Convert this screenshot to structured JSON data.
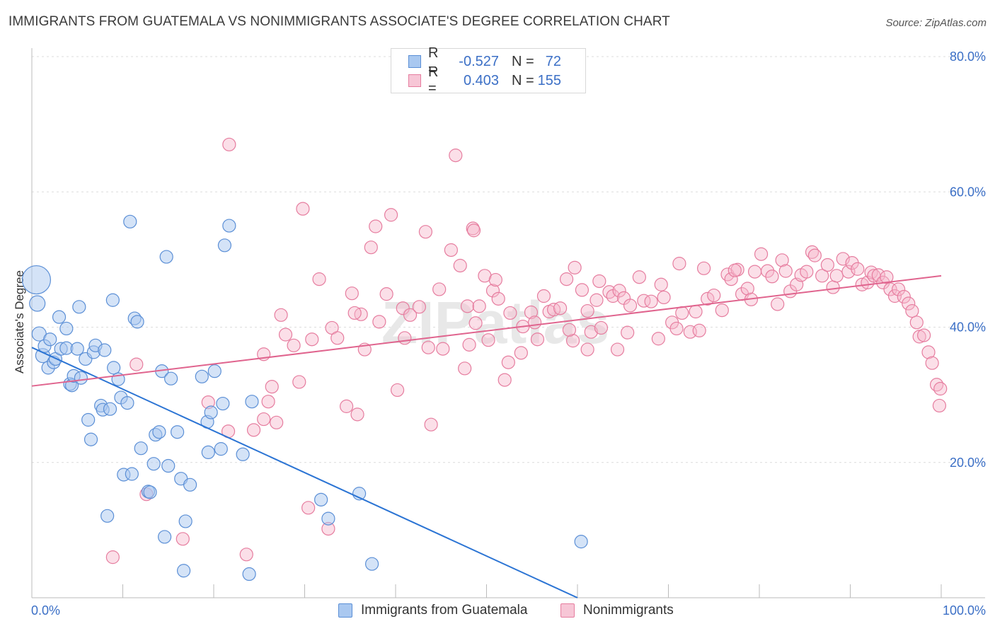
{
  "title": "IMMIGRANTS FROM GUATEMALA VS NONIMMIGRANTS ASSOCIATE'S DEGREE CORRELATION CHART",
  "source": "Source: ZipAtlas.com",
  "legend": {
    "r_label": "R =",
    "n_label": "N =",
    "rows": [
      {
        "r": "-0.527",
        "n": "72"
      },
      {
        "r": "0.403",
        "n": "155"
      }
    ]
  },
  "bottom_legend": [
    "Immigrants from Guatemala",
    "Nonimmigrants"
  ],
  "watermark": "ZIPatlas",
  "colors": {
    "blue_fill": "#a9c8f0",
    "blue_stroke": "#5b8fd6",
    "blue_line": "#2b74d4",
    "pink_fill": "#f7b8cc",
    "pink_stroke": "#e67d9f",
    "pink_line": "#e0648e",
    "grid": "#dcdcdc",
    "tick_text": "#3b6fc6"
  },
  "chart_data": {
    "type": "scatter",
    "ylabel": "Associate's Degree",
    "xlim": [
      0,
      100
    ],
    "ylim": [
      0,
      80
    ],
    "x_tick_labels": [
      "0.0%",
      "100.0%"
    ],
    "y_ticks": [
      20,
      40,
      60,
      80
    ],
    "y_tick_labels": [
      "20.0%",
      "40.0%",
      "60.0%",
      "80.0%"
    ],
    "grid": "horizontal dashed",
    "series": [
      {
        "name": "Immigrants from Guatemala",
        "color": "blue",
        "trend": {
          "x0": 0,
          "y0": 37.0,
          "x1": 60,
          "y1": 0
        },
        "points": [
          [
            0.5,
            47,
            20
          ],
          [
            0.6,
            43.5,
            11
          ],
          [
            0.8,
            39,
            10
          ],
          [
            1.2,
            35.8,
            10
          ],
          [
            1.4,
            37.2,
            9
          ],
          [
            1.8,
            34,
            9
          ],
          [
            2.0,
            38.2,
            9
          ],
          [
            2.4,
            34.8,
            9
          ],
          [
            2.6,
            35.3,
            9
          ],
          [
            3.2,
            36.8,
            9
          ],
          [
            3.0,
            41.5,
            9
          ],
          [
            3.8,
            36.9,
            9
          ],
          [
            3.8,
            39.8,
            9
          ],
          [
            4.2,
            31.6,
            9
          ],
          [
            4.4,
            31.4,
            9
          ],
          [
            4.6,
            32.8,
            9
          ],
          [
            5.0,
            36.8,
            9
          ],
          [
            5.2,
            43,
            9
          ],
          [
            5.4,
            32.5,
            9
          ],
          [
            5.9,
            35.3,
            9
          ],
          [
            6.2,
            26.3,
            9
          ],
          [
            6.5,
            23.4,
            9
          ],
          [
            6.8,
            36.3,
            9
          ],
          [
            7.0,
            37.3,
            9
          ],
          [
            7.6,
            28.4,
            9
          ],
          [
            7.8,
            27.8,
            9
          ],
          [
            8.0,
            36.6,
            9
          ],
          [
            8.3,
            12.1,
            9
          ],
          [
            8.6,
            27.9,
            9
          ],
          [
            8.9,
            44,
            9
          ],
          [
            9.0,
            34,
            9
          ],
          [
            9.5,
            32.3,
            9
          ],
          [
            9.8,
            29.6,
            9
          ],
          [
            10.1,
            18.2,
            9
          ],
          [
            10.5,
            28.8,
            9
          ],
          [
            10.8,
            55.6,
            9
          ],
          [
            11.0,
            18.3,
            9
          ],
          [
            11.3,
            41.3,
            9
          ],
          [
            11.6,
            40.8,
            9
          ],
          [
            12.0,
            22.1,
            9
          ],
          [
            12.8,
            15.7,
            9
          ],
          [
            13.0,
            15.6,
            9
          ],
          [
            13.4,
            19.8,
            9
          ],
          [
            13.6,
            24.1,
            9
          ],
          [
            14.0,
            24.5,
            9
          ],
          [
            14.3,
            33.5,
            9
          ],
          [
            14.6,
            9,
            9
          ],
          [
            14.8,
            50.4,
            9
          ],
          [
            15.0,
            19.5,
            9
          ],
          [
            15.3,
            32.4,
            9
          ],
          [
            16.0,
            24.5,
            9
          ],
          [
            16.4,
            17.6,
            9
          ],
          [
            16.7,
            4,
            9
          ],
          [
            16.9,
            11.3,
            9
          ],
          [
            17.4,
            16.7,
            9
          ],
          [
            18.7,
            32.7,
            9
          ],
          [
            19.3,
            26,
            9
          ],
          [
            19.4,
            21.5,
            9
          ],
          [
            19.7,
            27.4,
            9
          ],
          [
            20.1,
            33.5,
            9
          ],
          [
            20.8,
            22,
            9
          ],
          [
            21.0,
            28.7,
            9
          ],
          [
            21.2,
            52.1,
            9
          ],
          [
            21.7,
            55,
            9
          ],
          [
            23.2,
            21.2,
            9
          ],
          [
            23.9,
            3.5,
            9
          ],
          [
            31.8,
            14.5,
            9
          ],
          [
            32.6,
            11.7,
            9
          ],
          [
            36.0,
            15.4,
            9
          ],
          [
            37.4,
            5,
            9
          ],
          [
            60.4,
            8.3,
            9
          ],
          [
            24.2,
            29,
            9
          ]
        ]
      },
      {
        "name": "Nonimmigrants",
        "color": "pink",
        "trend": {
          "x0": 0,
          "y0": 31.3,
          "x1": 100,
          "y1": 47.6
        },
        "points": [
          [
            8.9,
            6,
            9
          ],
          [
            11.5,
            34.5,
            9
          ],
          [
            12.6,
            15.3,
            9
          ],
          [
            16.6,
            8.7,
            9
          ],
          [
            19.4,
            28.9,
            9
          ],
          [
            21.6,
            24.6,
            9
          ],
          [
            21.7,
            67,
            9
          ],
          [
            23.6,
            6.4,
            9
          ],
          [
            24.4,
            24.8,
            9
          ],
          [
            25.5,
            36,
            9
          ],
          [
            25.5,
            26.4,
            9
          ],
          [
            26,
            29,
            9
          ],
          [
            26.4,
            31.2,
            9
          ],
          [
            26.9,
            25.9,
            9
          ],
          [
            27.4,
            41.8,
            9
          ],
          [
            27.9,
            38.9,
            9
          ],
          [
            28.8,
            37.3,
            9
          ],
          [
            29.4,
            31.9,
            9
          ],
          [
            29.8,
            57.5,
            9
          ],
          [
            30.4,
            13.3,
            9
          ],
          [
            30.8,
            38.2,
            9
          ],
          [
            31.6,
            47.1,
            9
          ],
          [
            32.6,
            10.2,
            9
          ],
          [
            33,
            39.9,
            9
          ],
          [
            33.6,
            38.4,
            9
          ],
          [
            34.6,
            28.3,
            9
          ],
          [
            35.2,
            45,
            9
          ],
          [
            35.8,
            27.1,
            9
          ],
          [
            36.2,
            41.9,
            9
          ],
          [
            36.6,
            36.7,
            9
          ],
          [
            37.3,
            51.8,
            9
          ],
          [
            37.8,
            54.9,
            9
          ],
          [
            38.2,
            40.8,
            9
          ],
          [
            39,
            44.9,
            9
          ],
          [
            39.5,
            56.6,
            9
          ],
          [
            40.2,
            30.7,
            9
          ],
          [
            40.8,
            42.8,
            9
          ],
          [
            41.0,
            38.4,
            9
          ],
          [
            41.6,
            41.8,
            9
          ],
          [
            42.6,
            43,
            9
          ],
          [
            43.3,
            54.1,
            9
          ],
          [
            43.6,
            37,
            9
          ],
          [
            43.9,
            25.6,
            9
          ],
          [
            44.8,
            45.6,
            9
          ],
          [
            45.2,
            36.8,
            9
          ],
          [
            46.1,
            51.4,
            9
          ],
          [
            46.6,
            65.4,
            9
          ],
          [
            47.1,
            49.1,
            9
          ],
          [
            47.6,
            33.9,
            9
          ],
          [
            47.9,
            43.1,
            9
          ],
          [
            48.5,
            54.6,
            9
          ],
          [
            48.6,
            54.3,
            9
          ],
          [
            48.8,
            40.6,
            9
          ],
          [
            49.2,
            43.1,
            9
          ],
          [
            49.8,
            47.6,
            9
          ],
          [
            50.2,
            38.1,
            9
          ],
          [
            50.7,
            45.4,
            9
          ],
          [
            51.0,
            47,
            9
          ],
          [
            51.3,
            44.2,
            9
          ],
          [
            52,
            32.2,
            9
          ],
          [
            52.4,
            34.8,
            9
          ],
          [
            52.6,
            42.1,
            9
          ],
          [
            53.8,
            36.2,
            9
          ],
          [
            54,
            40.1,
            9
          ],
          [
            54.9,
            42.2,
            9
          ],
          [
            55.6,
            38.2,
            9
          ],
          [
            56.3,
            44.6,
            9
          ],
          [
            56.9,
            42.3,
            9
          ],
          [
            57.4,
            42.6,
            9
          ],
          [
            58.8,
            47.1,
            9
          ],
          [
            59.5,
            38,
            9
          ],
          [
            59.7,
            48.8,
            9
          ],
          [
            60.5,
            45.5,
            9
          ],
          [
            61.1,
            42.4,
            9
          ],
          [
            61.5,
            39.3,
            9
          ],
          [
            62.1,
            44,
            9
          ],
          [
            62.4,
            46.8,
            9
          ],
          [
            62.6,
            39.9,
            9
          ],
          [
            63.5,
            45.2,
            9
          ],
          [
            63.9,
            44.6,
            9
          ],
          [
            64.6,
            45.4,
            9
          ],
          [
            65.1,
            44.3,
            9
          ],
          [
            65.5,
            39.2,
            9
          ],
          [
            65.8,
            43.2,
            9
          ],
          [
            66.8,
            47.4,
            9
          ],
          [
            67.3,
            43.9,
            9
          ],
          [
            68.1,
            43.8,
            9
          ],
          [
            68.9,
            38.3,
            9
          ],
          [
            69.2,
            46.3,
            9
          ],
          [
            69.5,
            44.4,
            9
          ],
          [
            70.4,
            40.7,
            9
          ],
          [
            70.9,
            39.8,
            9
          ],
          [
            71.2,
            49.4,
            9
          ],
          [
            71.5,
            42.1,
            9
          ],
          [
            72.4,
            39.3,
            9
          ],
          [
            73.0,
            42.3,
            9
          ],
          [
            73.4,
            39.5,
            9
          ],
          [
            73.9,
            48.7,
            9
          ],
          [
            74.3,
            44.2,
            9
          ],
          [
            75.0,
            44.7,
            9
          ],
          [
            75.9,
            42.5,
            9
          ],
          [
            76.5,
            47.8,
            9
          ],
          [
            76.9,
            47.1,
            9
          ],
          [
            77.6,
            48.5,
            9
          ],
          [
            77.3,
            48.4,
            9
          ],
          [
            78.1,
            44.9,
            9
          ],
          [
            78.7,
            45.7,
            9
          ],
          [
            79.1,
            44.1,
            9
          ],
          [
            79.5,
            48.2,
            9
          ],
          [
            80.2,
            50.8,
            9
          ],
          [
            80.9,
            48.3,
            9
          ],
          [
            81.4,
            47.5,
            9
          ],
          [
            82.0,
            43.4,
            9
          ],
          [
            82.5,
            49.9,
            9
          ],
          [
            82.9,
            48.3,
            9
          ],
          [
            83.4,
            45.3,
            9
          ],
          [
            84.1,
            46.3,
            9
          ],
          [
            84.6,
            47.7,
            9
          ],
          [
            85.2,
            48.2,
            9
          ],
          [
            85.8,
            51.1,
            9
          ],
          [
            86.1,
            50.6,
            9
          ],
          [
            86.9,
            47.6,
            9
          ],
          [
            87.5,
            49.2,
            9
          ],
          [
            88.1,
            45.9,
            9
          ],
          [
            88.5,
            47.6,
            9
          ],
          [
            89.2,
            50.1,
            9
          ],
          [
            89.8,
            48.2,
            9
          ],
          [
            90.2,
            49.5,
            9
          ],
          [
            90.8,
            48.6,
            9
          ],
          [
            91.3,
            46.3,
            9
          ],
          [
            91.9,
            46.6,
            9
          ],
          [
            92.3,
            48.1,
            9
          ],
          [
            92.6,
            47.6,
            9
          ],
          [
            93.1,
            47.7,
            9
          ],
          [
            93.6,
            46.6,
            9
          ],
          [
            94.0,
            47.4,
            9
          ],
          [
            94.4,
            45.6,
            9
          ],
          [
            94.9,
            44.6,
            9
          ],
          [
            95.3,
            45.6,
            9
          ],
          [
            95.9,
            44.5,
            9
          ],
          [
            96.4,
            43.5,
            9
          ],
          [
            96.8,
            42.4,
            9
          ],
          [
            97.3,
            40.7,
            9
          ],
          [
            97.6,
            38.6,
            9
          ],
          [
            98.1,
            38.8,
            9
          ],
          [
            98.6,
            36.3,
            9
          ],
          [
            99.0,
            34.7,
            9
          ],
          [
            99.5,
            31.5,
            9
          ],
          [
            99.9,
            30.9,
            9
          ],
          [
            99.8,
            28.4,
            9
          ],
          [
            48.1,
            37.4,
            9
          ],
          [
            55.3,
            40.7,
            9
          ],
          [
            58.1,
            42.8,
            9
          ],
          [
            59.1,
            39.6,
            9
          ],
          [
            61.1,
            36.7,
            9
          ],
          [
            64.4,
            36.7,
            9
          ],
          [
            35.5,
            42.1,
            9
          ]
        ]
      }
    ]
  }
}
